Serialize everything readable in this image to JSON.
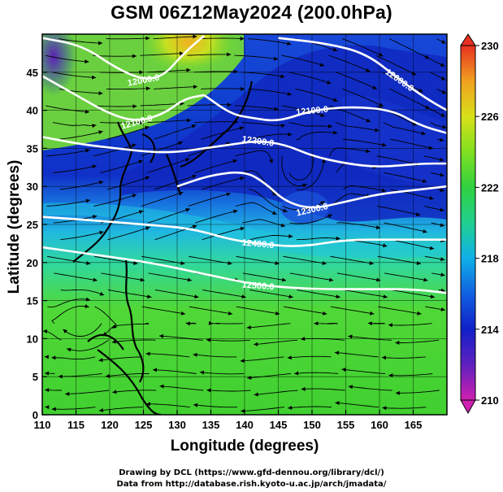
{
  "title": "GSM 06Z12May2024 (200.0hPa)",
  "x_axis": {
    "label": "Longitude (degrees)",
    "range": [
      110,
      170
    ],
    "ticks": [
      110,
      115,
      120,
      125,
      130,
      135,
      140,
      145,
      150,
      155,
      160,
      165
    ]
  },
  "y_axis": {
    "label": "Latitude  (degrees)",
    "range": [
      0,
      50
    ],
    "ticks": [
      0,
      5,
      10,
      15,
      20,
      25,
      30,
      35,
      40,
      45
    ]
  },
  "colorbar": {
    "range": [
      210,
      230
    ],
    "ticks": [
      210,
      214,
      218,
      222,
      226,
      230
    ],
    "colors": [
      "#d020b0",
      "#6020c0",
      "#1020c8",
      "#1060e0",
      "#10b0e8",
      "#20d090",
      "#30d040",
      "#80e020",
      "#d8e018",
      "#f0a020",
      "#e83020"
    ]
  },
  "contours": [
    {
      "label": "12000.0",
      "points": [
        [
          110,
          49.5
        ],
        [
          116,
          48.5
        ],
        [
          121,
          45.5
        ],
        [
          125,
          44
        ],
        [
          128,
          44.5
        ],
        [
          131,
          47.5
        ],
        [
          134,
          49.8
        ]
      ]
    },
    {
      "label": "12000.0",
      "points": [
        [
          145,
          49.5
        ],
        [
          152,
          48.8
        ],
        [
          158,
          47.5
        ],
        [
          163,
          44
        ],
        [
          167,
          41.5
        ],
        [
          170,
          40
        ]
      ]
    },
    {
      "label": "12100.0",
      "points": [
        [
          110,
          44.5
        ],
        [
          115,
          42
        ],
        [
          120,
          39.5
        ],
        [
          124,
          38.5
        ],
        [
          128,
          39.5
        ],
        [
          131,
          41.5
        ],
        [
          134,
          42
        ]
      ]
    },
    {
      "label": "12100.0",
      "points": [
        [
          134,
          42
        ],
        [
          138,
          39.5
        ],
        [
          141,
          39
        ],
        [
          145,
          38.5
        ],
        [
          150,
          40
        ],
        [
          156,
          40.5
        ],
        [
          162,
          40
        ],
        [
          166,
          38
        ],
        [
          170,
          37
        ]
      ]
    },
    {
      "label": "12200.0",
      "points": [
        [
          110,
          36.5
        ],
        [
          116,
          35.5
        ],
        [
          121,
          35
        ],
        [
          126,
          34.5
        ],
        [
          130,
          34.5
        ],
        [
          134,
          35
        ],
        [
          138,
          35.5
        ],
        [
          142,
          36
        ],
        [
          146,
          35.5
        ],
        [
          150,
          34
        ],
        [
          155,
          33
        ],
        [
          160,
          32.5
        ],
        [
          166,
          33
        ],
        [
          170,
          33
        ]
      ]
    },
    {
      "label": "12300.0",
      "points": [
        [
          130,
          30
        ],
        [
          135,
          31.5
        ],
        [
          140,
          32
        ],
        [
          143,
          30.5
        ],
        [
          146,
          28
        ],
        [
          150,
          27
        ],
        [
          155,
          28
        ],
        [
          160,
          29
        ],
        [
          165,
          29.5
        ],
        [
          170,
          30
        ]
      ]
    },
    {
      "label": "12400.0",
      "points": [
        [
          110,
          26
        ],
        [
          118,
          25.5
        ],
        [
          125,
          25
        ],
        [
          132,
          24.5
        ],
        [
          138,
          23
        ],
        [
          142,
          22.5
        ],
        [
          148,
          22
        ],
        [
          155,
          23
        ],
        [
          162,
          23
        ],
        [
          170,
          23
        ]
      ]
    },
    {
      "label": "12500.0",
      "points": [
        [
          110,
          22
        ],
        [
          118,
          21
        ],
        [
          126,
          20
        ],
        [
          134,
          18.5
        ],
        [
          142,
          17
        ],
        [
          150,
          16.5
        ],
        [
          158,
          16.5
        ],
        [
          165,
          16.5
        ],
        [
          170,
          16
        ]
      ]
    }
  ]
}
